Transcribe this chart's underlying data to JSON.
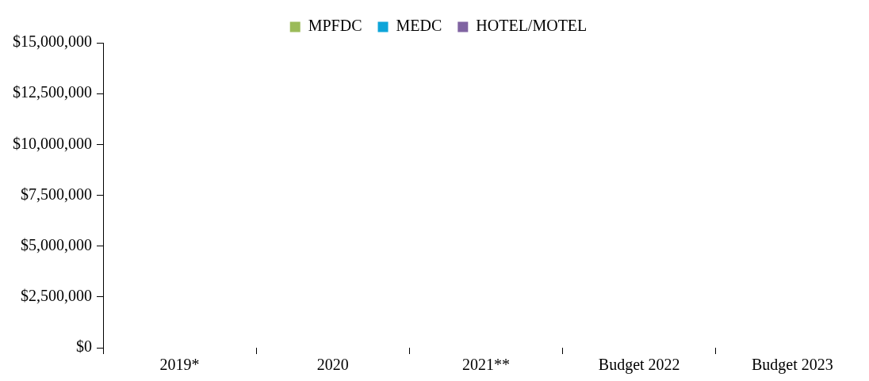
{
  "chart_data": {
    "type": "bar",
    "categories": [
      "2019*",
      "2020",
      "2021**",
      "Budget 2022",
      "Budget 2023"
    ],
    "series": [
      {
        "name": "MPFDC",
        "color": "#9bbb59",
        "values": [
          null,
          null,
          null,
          null,
          null
        ]
      },
      {
        "name": "MEDC",
        "color": "#0ea5d9",
        "values": [
          null,
          null,
          null,
          null,
          null
        ]
      },
      {
        "name": "HOTEL/MOTEL",
        "color": "#8064a2",
        "values": [
          null,
          null,
          null,
          null,
          null
        ]
      }
    ],
    "ylim": [
      0,
      15000000
    ],
    "yticks": [
      {
        "value": 0,
        "label": "$0"
      },
      {
        "value": 2500000,
        "label": "$2,500,000"
      },
      {
        "value": 5000000,
        "label": "$5,000,000"
      },
      {
        "value": 7500000,
        "label": "$7,500,000"
      },
      {
        "value": 10000000,
        "label": "$10,000,000"
      },
      {
        "value": 12500000,
        "label": "$12,500,000"
      },
      {
        "value": 15000000,
        "label": "$15,000,000"
      }
    ],
    "grid": false,
    "legend": "top"
  }
}
